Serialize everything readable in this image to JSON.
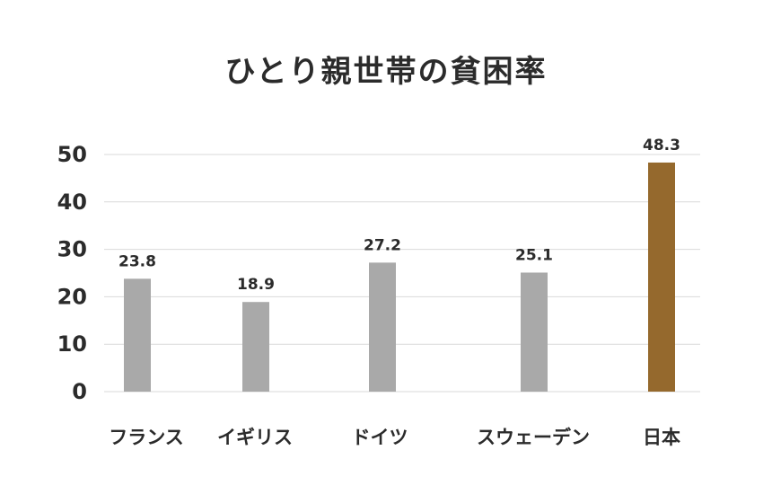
{
  "chart_data": {
    "type": "bar",
    "title": "ひとり親世帯の貧困率",
    "xlabel": "",
    "ylabel": "",
    "ylim": [
      0,
      50
    ],
    "yticks": [
      0,
      10,
      20,
      30,
      40,
      50
    ],
    "grid": true,
    "categories": [
      "フランス",
      "イギリス",
      "ドイツ",
      "スウェーデン",
      "日本"
    ],
    "values": [
      23.8,
      18.9,
      27.2,
      25.1,
      48.3
    ],
    "value_labels": [
      "23.8",
      "18.9",
      "27.2",
      "25.1",
      "48.3"
    ],
    "colors": {
      "default_bar": "#a9a9a9",
      "highlight_bar": "#95692d",
      "gridline": "#d9d9d9",
      "text": "#2b2b2b"
    },
    "highlight_category": "日本"
  }
}
